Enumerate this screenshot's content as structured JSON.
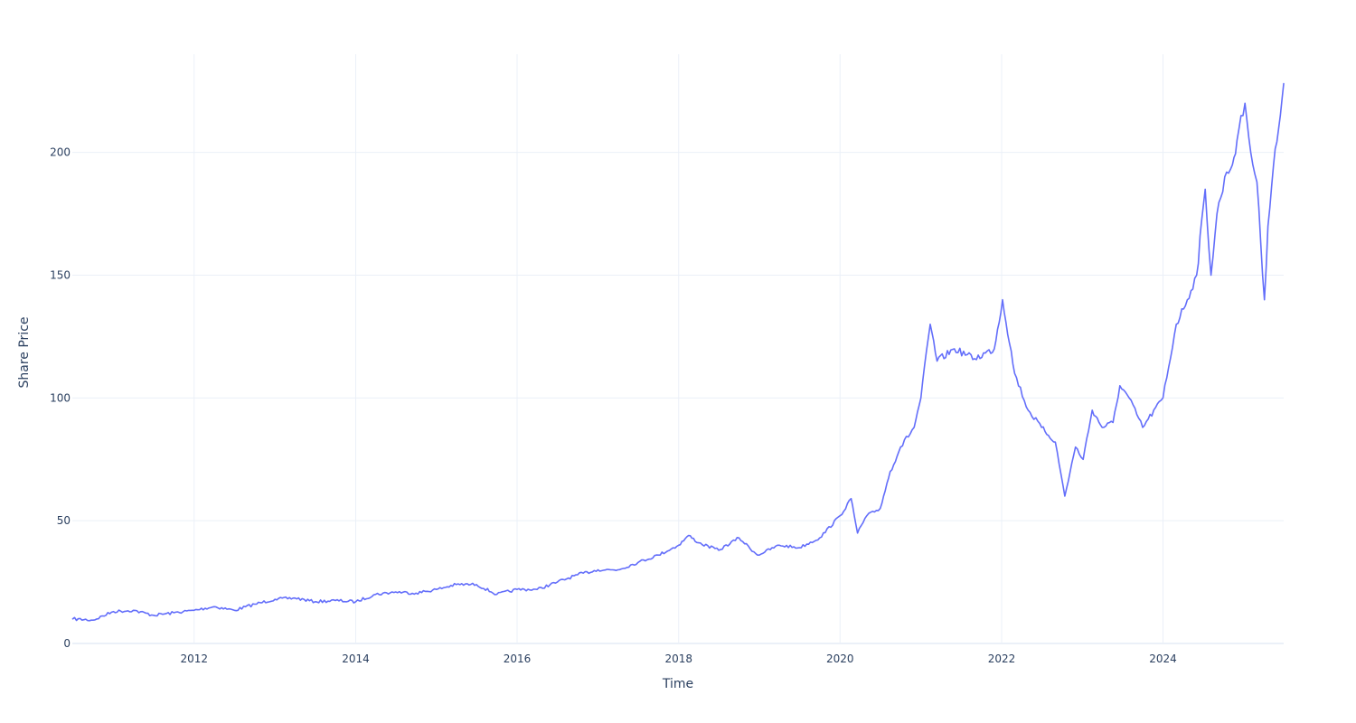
{
  "chart_data": {
    "type": "line",
    "title": "",
    "xlabel": "Time",
    "ylabel": "Share Price",
    "xlim": [
      "2010-06-29",
      "2025-06-30"
    ],
    "ylim": [
      0,
      240
    ],
    "x_ticks": [
      "2012",
      "2014",
      "2016",
      "2018",
      "2020",
      "2022",
      "2024"
    ],
    "y_ticks": [
      0,
      50,
      100,
      150,
      200
    ],
    "grid": true,
    "legend": "none",
    "colors": {
      "line": "#636efa",
      "grid": "#ebf0f8",
      "text": "#2a3f5f"
    },
    "series": [
      {
        "x": [
          "2010-07-01",
          "2010-10-01",
          "2011-01-01",
          "2011-04-01",
          "2011-07-01",
          "2011-10-01",
          "2012-01-01",
          "2012-04-01",
          "2012-07-01",
          "2012-10-01",
          "2013-01-01",
          "2013-04-01",
          "2013-07-01",
          "2013-10-01",
          "2014-01-01",
          "2014-04-01",
          "2014-07-01",
          "2014-10-01",
          "2015-01-01",
          "2015-04-01",
          "2015-07-01",
          "2015-10-01",
          "2016-01-01",
          "2016-04-01",
          "2016-07-01",
          "2016-10-01",
          "2017-01-01",
          "2017-04-01",
          "2017-07-01",
          "2017-10-01",
          "2018-01-01",
          "2018-02-15",
          "2018-04-01",
          "2018-07-01",
          "2018-10-01",
          "2018-12-24",
          "2019-04-01",
          "2019-07-01",
          "2019-10-01",
          "2020-01-01",
          "2020-02-20",
          "2020-03-20",
          "2020-05-01",
          "2020-07-01",
          "2020-08-15",
          "2020-10-01",
          "2020-12-01",
          "2021-01-01",
          "2021-02-12",
          "2021-03-15",
          "2021-06-01",
          "2021-09-01",
          "2021-11-29",
          "2022-01-05",
          "2022-03-01",
          "2022-05-01",
          "2022-07-01",
          "2022-09-01",
          "2022-10-14",
          "2022-12-01",
          "2023-01-05",
          "2023-02-15",
          "2023-04-01",
          "2023-05-20",
          "2023-06-20",
          "2023-08-01",
          "2023-10-01",
          "2024-01-01",
          "2024-03-01",
          "2024-04-20",
          "2024-06-01",
          "2024-07-10",
          "2024-08-05",
          "2024-09-01",
          "2024-10-15",
          "2024-11-10",
          "2024-12-01",
          "2025-01-06",
          "2025-02-01",
          "2025-03-01",
          "2025-04-04",
          "2025-04-20",
          "2025-05-15",
          "2025-06-15",
          "2025-06-30"
        ],
        "y": [
          10,
          9.5,
          13,
          13.5,
          11.5,
          12.5,
          13.5,
          15,
          13.5,
          16,
          18,
          18.5,
          17,
          17.5,
          17,
          20,
          21,
          20.5,
          22,
          24,
          24,
          20,
          22,
          22,
          25,
          28,
          30,
          30,
          33,
          36,
          40,
          44,
          41,
          38,
          43,
          36,
          40,
          39,
          43,
          52,
          59,
          45,
          52,
          55,
          70,
          80,
          88,
          100,
          130,
          115,
          120,
          116,
          120,
          140,
          110,
          95,
          88,
          82,
          60,
          80,
          75,
          95,
          88,
          90,
          105,
          100,
          88,
          100,
          130,
          140,
          150,
          185,
          150,
          175,
          192,
          195,
          205,
          220,
          200,
          188,
          140,
          170,
          195,
          215,
          228
        ]
      }
    ]
  }
}
